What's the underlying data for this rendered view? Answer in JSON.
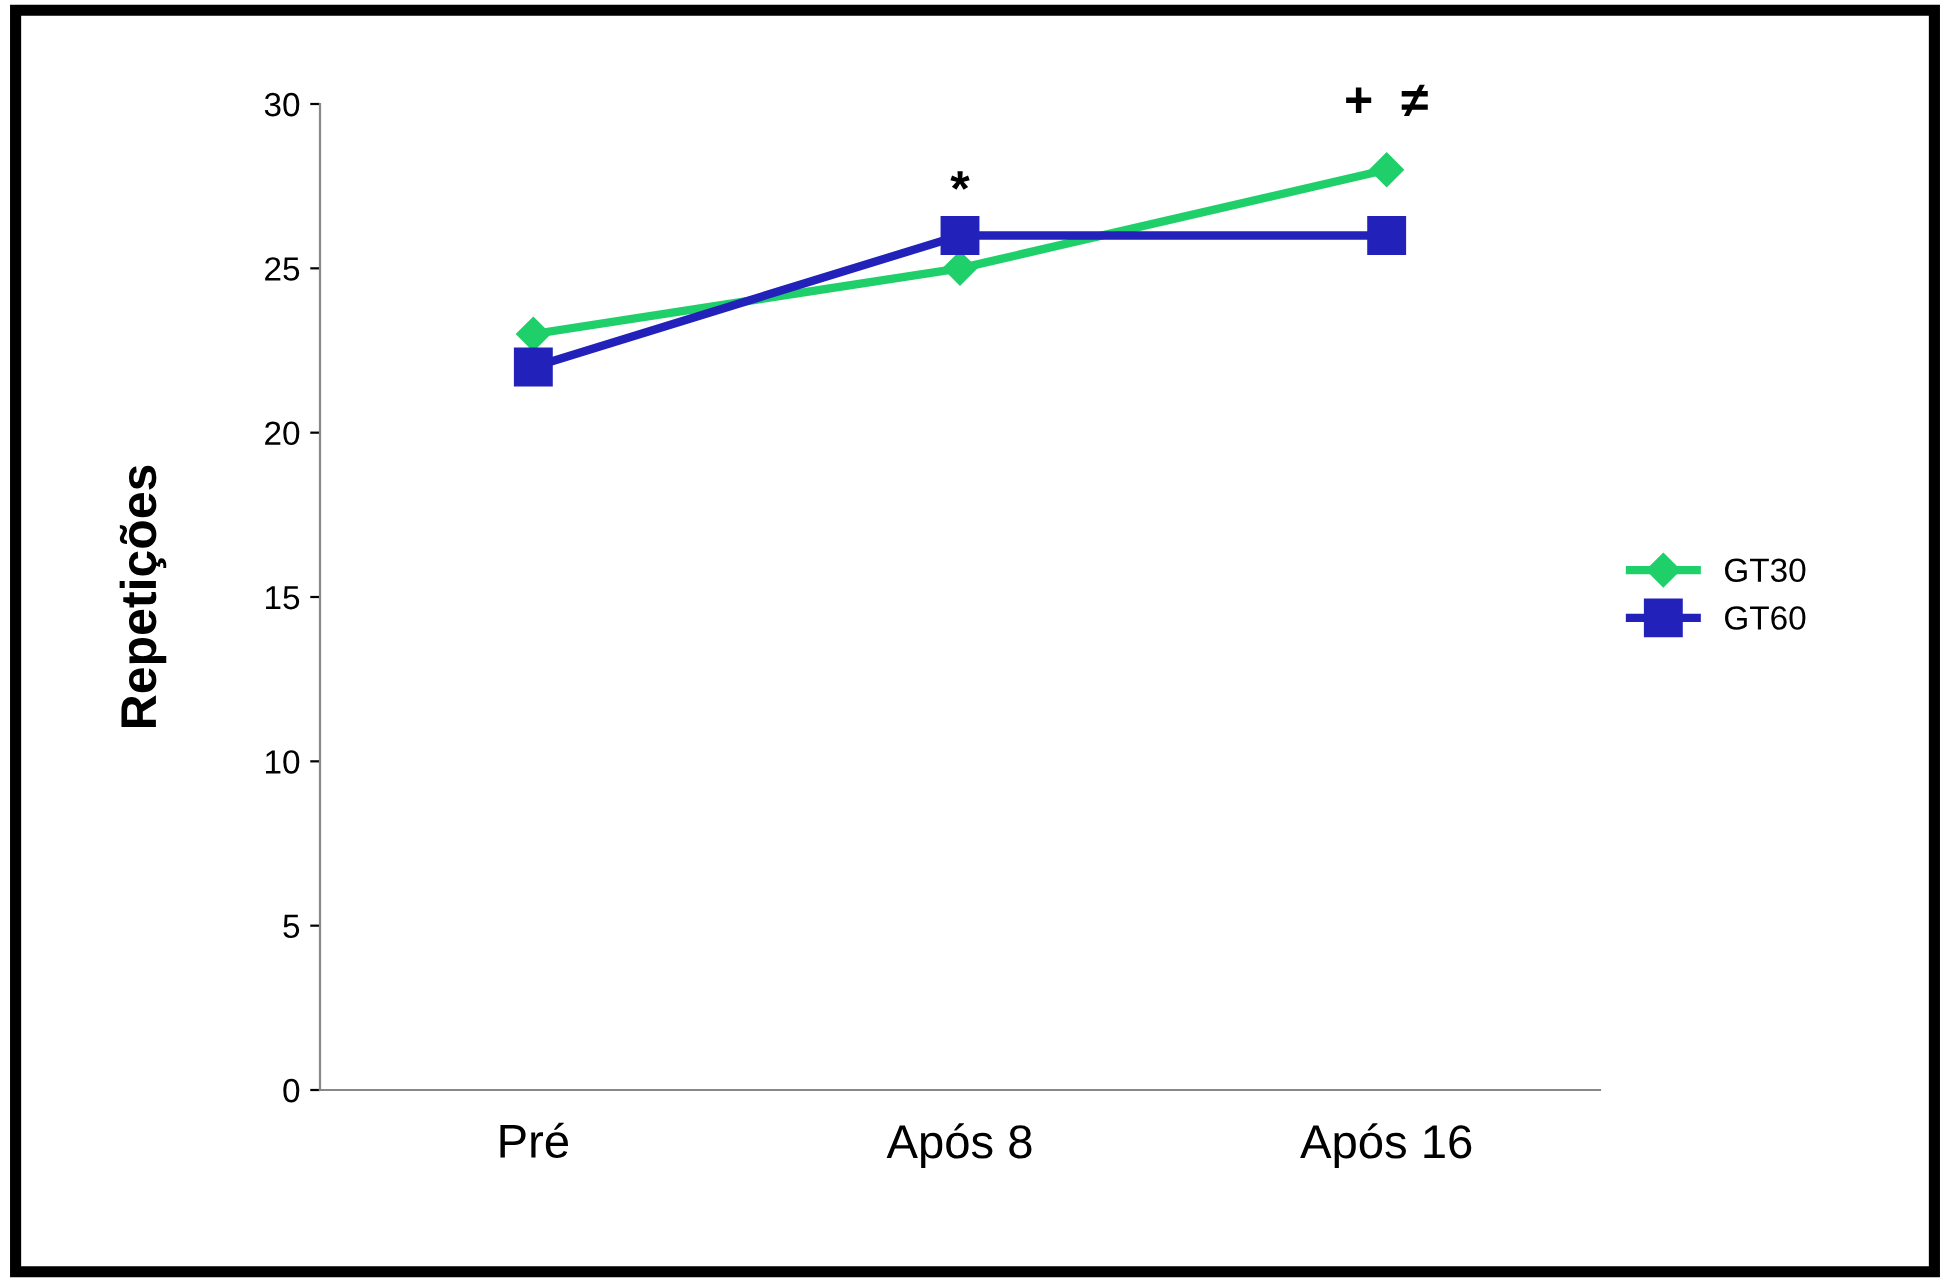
{
  "chart_data": {
    "type": "line",
    "ylabel": "Repetições",
    "categories": [
      "Pré",
      "Após 8",
      "Após 16"
    ],
    "series": [
      {
        "name": "GT30",
        "color": "#1fcf6a",
        "values": [
          23,
          25,
          28
        ],
        "marker": "diamond"
      },
      {
        "name": "GT60",
        "color": "#2222bb",
        "values": [
          22,
          26,
          26
        ],
        "marker": "square"
      }
    ],
    "ylim": [
      0,
      30
    ],
    "yticks": [
      0,
      5,
      10,
      15,
      20,
      25,
      30
    ],
    "grid": false,
    "legend": "right",
    "line_style": "solid",
    "annotations": [
      "*",
      "+  ≠"
    ]
  }
}
